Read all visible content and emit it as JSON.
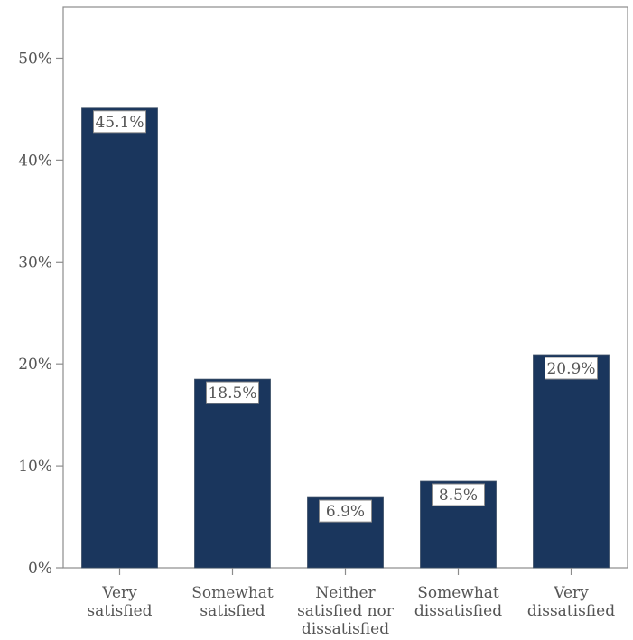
{
  "chart_data": {
    "type": "bar",
    "categories": [
      [
        "Very",
        "satisfied"
      ],
      [
        "Somewhat",
        "satisfied"
      ],
      [
        "Neither",
        "satisfied nor",
        "dissatisfied"
      ],
      [
        "Somewhat",
        "dissatisfied"
      ],
      [
        "Very",
        "dissatisfied"
      ]
    ],
    "values": [
      45.1,
      18.5,
      6.9,
      8.5,
      20.9
    ],
    "data_labels": [
      "45.1%",
      "18.5%",
      "6.9%",
      "8.5%",
      "20.9%"
    ],
    "y_ticks": [
      0,
      10,
      20,
      30,
      40,
      50
    ],
    "y_tick_labels": [
      "0%",
      "10%",
      "20%",
      "30%",
      "40%",
      "50%"
    ],
    "ylim": [
      0,
      55
    ],
    "title": "",
    "xlabel": "",
    "ylabel": "",
    "grid": false,
    "colors": {
      "bar": "#1a365d",
      "axis": "#8c8c8c",
      "label_text": "#555555",
      "label_box_fill": "#ffffff",
      "label_box_stroke": "#8c8c8c"
    }
  }
}
